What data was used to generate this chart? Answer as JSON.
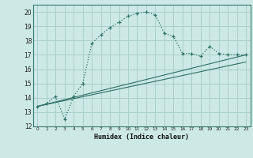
{
  "xlabel": "Humidex (Indice chaleur)",
  "bg_color": "#cce9e5",
  "grid_color": "#aacfca",
  "line_color": "#2e6e65",
  "xlim": [
    -0.5,
    23.5
  ],
  "ylim": [
    12,
    20.5
  ],
  "yticks": [
    12,
    13,
    14,
    15,
    16,
    17,
    18,
    19,
    20
  ],
  "xticks": [
    0,
    1,
    2,
    3,
    4,
    5,
    6,
    7,
    8,
    9,
    10,
    11,
    12,
    13,
    14,
    15,
    16,
    17,
    18,
    19,
    20,
    21,
    22,
    23
  ],
  "curve1_x": [
    0,
    1,
    2,
    3,
    4,
    5,
    6,
    7,
    8,
    9,
    10,
    11,
    12,
    13,
    14,
    15,
    16,
    17,
    18,
    19,
    20,
    21,
    22,
    23
  ],
  "curve1_y": [
    13.4,
    13.6,
    14.1,
    12.5,
    14.1,
    15.0,
    17.8,
    18.4,
    18.9,
    19.3,
    19.7,
    19.9,
    20.0,
    19.8,
    18.5,
    18.3,
    17.1,
    17.1,
    16.9,
    17.6,
    17.1,
    17.0,
    17.0,
    17.0
  ],
  "line2_x": [
    0,
    23
  ],
  "line2_y": [
    13.4,
    17.0
  ],
  "line3_x": [
    0,
    23
  ],
  "line3_y": [
    13.4,
    16.5
  ]
}
